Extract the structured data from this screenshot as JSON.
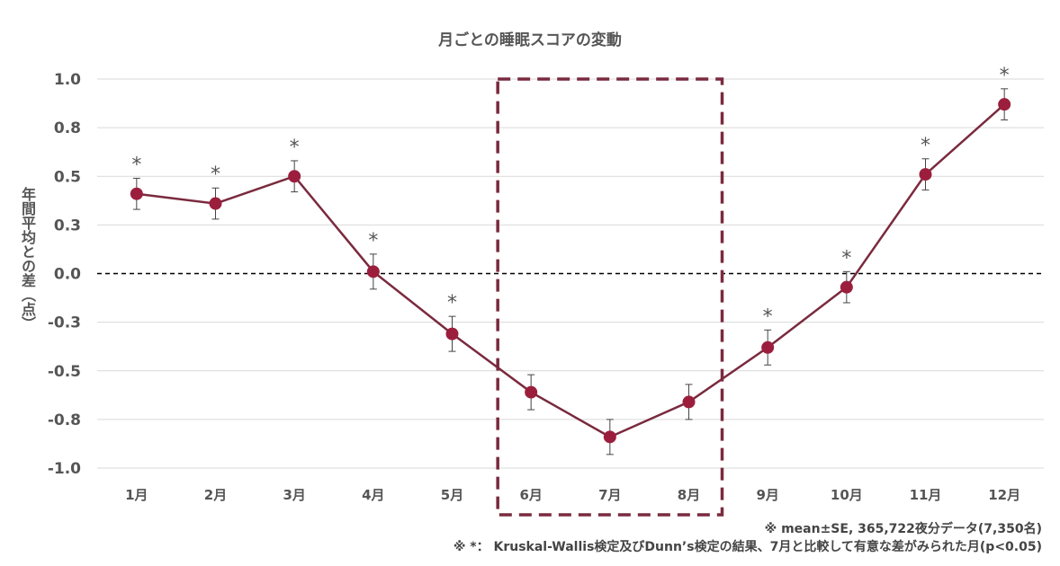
{
  "chart_data": {
    "type": "line",
    "title": "月ごとの睡眠スコアの変動",
    "xlabel": "",
    "ylabel": "年間平均との差（点）",
    "categories": [
      "1月",
      "2月",
      "3月",
      "4月",
      "5月",
      "6月",
      "7月",
      "8月",
      "9月",
      "10月",
      "11月",
      "12月"
    ],
    "series": [
      {
        "name": "睡眠スコア",
        "values": [
          0.41,
          0.36,
          0.5,
          0.01,
          -0.31,
          -0.61,
          -0.84,
          -0.66,
          -0.38,
          -0.07,
          0.51,
          0.87
        ],
        "errors": [
          0.08,
          0.08,
          0.08,
          0.09,
          0.09,
          0.09,
          0.09,
          0.09,
          0.09,
          0.08,
          0.08,
          0.08
        ],
        "significant": [
          true,
          true,
          true,
          true,
          true,
          false,
          false,
          false,
          true,
          true,
          true,
          true
        ]
      }
    ],
    "ylim": [
      -1.0,
      1.0
    ],
    "yticks": [
      1.0,
      0.75,
      0.5,
      0.25,
      0.0,
      -0.25,
      -0.5,
      -0.75,
      -1.0
    ],
    "ytick_labels": [
      "1.0",
      "0.8",
      "0.5",
      "0.3",
      "0.0",
      "-0.3",
      "-0.5",
      "-0.8",
      "-1.0"
    ],
    "significance_marker": "*",
    "highlight_range": [
      "6月",
      "8月"
    ],
    "reference_line": 0.0,
    "grid": true,
    "colors": {
      "line": "#7a2a3e",
      "marker": "#9b1f3d",
      "highlight": "#7a2a3e",
      "grid": "#d9d9d9"
    }
  },
  "notes": {
    "line1": "※ mean±SE, 365,722夜分データ(7,350名)",
    "line2": "※ *： Kruskal-Wallis検定及びDunn’s検定の結果、7月と比較して有意な差がみられた月(p<0.05)"
  }
}
